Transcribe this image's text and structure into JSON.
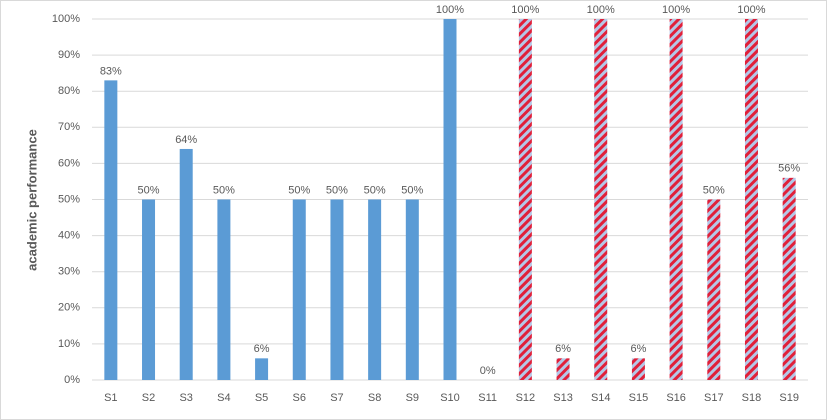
{
  "chart_data": {
    "type": "bar",
    "y_label": "academic performance",
    "categories": [
      "S1",
      "S2",
      "S3",
      "S4",
      "S5",
      "S6",
      "S7",
      "S8",
      "S9",
      "S10",
      "S11",
      "S12",
      "S13",
      "S14",
      "S15",
      "S16",
      "S17",
      "S18",
      "S19"
    ],
    "values": [
      83,
      50,
      64,
      50,
      6,
      50,
      50,
      50,
      50,
      100,
      0,
      100,
      6,
      100,
      6,
      100,
      50,
      100,
      56
    ],
    "value_labels": [
      "83%",
      "50%",
      "64%",
      "50%",
      "6%",
      "50%",
      "50%",
      "50%",
      "50%",
      "100%",
      "0%",
      "100%",
      "6%",
      "100%",
      "6%",
      "100%",
      "50%",
      "100%",
      "56%"
    ],
    "bar_styles": [
      "solid",
      "solid",
      "solid",
      "solid",
      "solid",
      "solid",
      "solid",
      "solid",
      "solid",
      "solid",
      "striped",
      "striped",
      "striped",
      "striped",
      "striped",
      "striped",
      "striped",
      "striped",
      "striped"
    ],
    "color": "#5b9bd5",
    "stripe_colors": [
      "#b4c7e7",
      "#e0203a"
    ],
    "ylim": [
      0,
      100
    ],
    "yticks": [
      {
        "value": 0,
        "label": "0%"
      },
      {
        "value": 10,
        "label": "10%"
      },
      {
        "value": 20,
        "label": "20%"
      },
      {
        "value": 30,
        "label": "30%"
      },
      {
        "value": 40,
        "label": "40%"
      },
      {
        "value": 50,
        "label": "50%"
      },
      {
        "value": 60,
        "label": "60%"
      },
      {
        "value": 70,
        "label": "70%"
      },
      {
        "value": 80,
        "label": "80%"
      },
      {
        "value": 90,
        "label": "90%"
      },
      {
        "value": 100,
        "label": "100%"
      }
    ],
    "grid": true
  }
}
